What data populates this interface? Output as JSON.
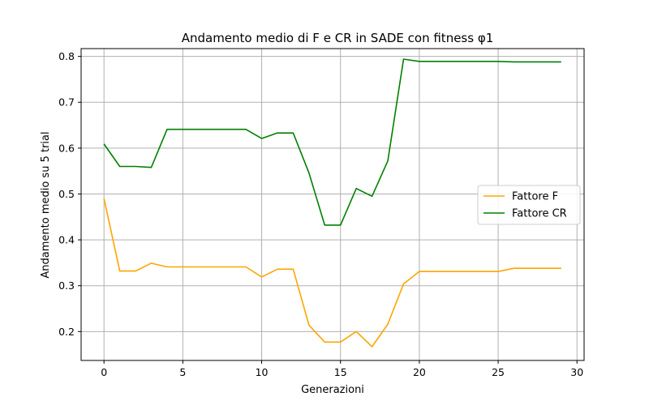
{
  "chart_data": {
    "type": "line",
    "title": "Andamento medio di F e CR in SADE con fitness φ1",
    "xlabel": "Generazioni",
    "ylabel": "Andamento medio su 5 trial",
    "xlim": [
      -1.45,
      30.45
    ],
    "ylim": [
      0.137,
      0.817
    ],
    "xticks": [
      0,
      5,
      10,
      15,
      20,
      25,
      30
    ],
    "yticks": [
      0.2,
      0.3,
      0.4,
      0.5,
      0.6,
      0.7,
      0.8
    ],
    "grid": true,
    "legend_position": "center-right",
    "x": [
      0,
      1,
      2,
      3,
      4,
      5,
      6,
      7,
      8,
      9,
      10,
      11,
      12,
      13,
      14,
      15,
      16,
      17,
      18,
      19,
      20,
      21,
      22,
      23,
      24,
      25,
      26,
      27,
      28,
      29
    ],
    "series": [
      {
        "name": "Fattore F",
        "color": "#ffa500",
        "values": [
          0.49,
          0.332,
          0.332,
          0.349,
          0.341,
          0.341,
          0.341,
          0.341,
          0.341,
          0.341,
          0.319,
          0.336,
          0.336,
          0.214,
          0.177,
          0.177,
          0.2,
          0.167,
          0.216,
          0.304,
          0.331,
          0.331,
          0.331,
          0.331,
          0.331,
          0.331,
          0.338,
          0.338,
          0.338,
          0.338
        ]
      },
      {
        "name": "Fattore CR",
        "color": "#008000",
        "values": [
          0.609,
          0.56,
          0.56,
          0.558,
          0.641,
          0.641,
          0.641,
          0.641,
          0.641,
          0.641,
          0.621,
          0.633,
          0.633,
          0.546,
          0.432,
          0.432,
          0.512,
          0.495,
          0.572,
          0.794,
          0.789,
          0.789,
          0.789,
          0.789,
          0.789,
          0.789,
          0.788,
          0.788,
          0.788,
          0.788
        ]
      }
    ]
  }
}
